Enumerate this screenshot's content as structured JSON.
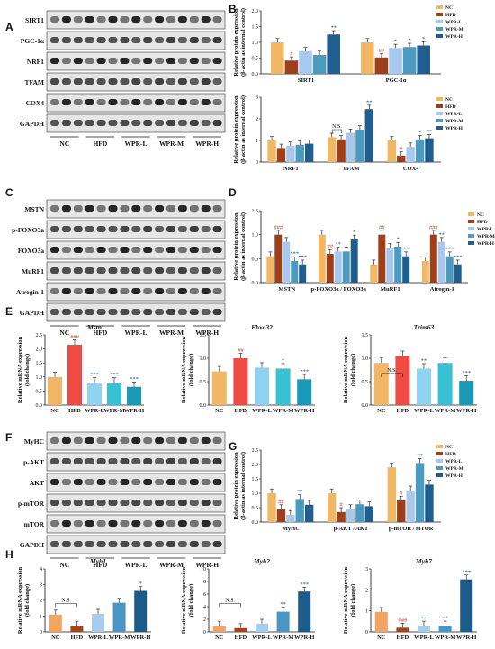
{
  "colors": {
    "NC": "#f2b765",
    "HFD": "#9e3f1a",
    "WPR-L": "#a9c8ee",
    "WPR-M": "#4b9bc0",
    "WPR-H": "#1f5e8e",
    "HFD_E": "#ef4b44",
    "WPR-L_E": "#8fd3f1",
    "WPR-M_E": "#38c1d3",
    "WPR-H_E": "#1b99b8",
    "H_NC": "#f3a463",
    "H_HFD": "#a8441c",
    "H_WPR-L": "#a7ccec",
    "H_WPR-M": "#4896c3",
    "H_WPR-H": "#1c5b8a"
  },
  "panels": {
    "A": "A",
    "B": "B",
    "C": "C",
    "D": "D",
    "E": "E",
    "F": "F",
    "G": "G",
    "H": "H"
  },
  "blot_group_labels": [
    "NC",
    "HFD",
    "WPR-L",
    "WPR-M",
    "WPR-H"
  ],
  "blots": {
    "A": [
      "SIRT1",
      "PGC-1α",
      "NRF1",
      "TFAM",
      "COX4",
      "GAPDH"
    ],
    "C": [
      "MSTN",
      "p-FOXO3a",
      "FOXO3a",
      "MuRF1",
      "Atrogin-1",
      "GAPDH"
    ],
    "F": [
      "MyHC",
      "p-AKT",
      "AKT",
      "p-mTOR",
      "mTOR",
      "GAPDH"
    ]
  },
  "legend": [
    "NC",
    "HFD",
    "WPR-L",
    "WPR-M",
    "WPR-H"
  ],
  "protein_ylabel": [
    "Relative protein expression",
    "(β-actin as internal control)"
  ],
  "mrna_ylabel": [
    "Relative mRNA expression",
    "(fold change)"
  ],
  "chart_data": [
    {
      "id": "B1",
      "type": "bar",
      "categories": [
        "SIRT1",
        "PGC-1α"
      ],
      "ylim": [
        0,
        2.0
      ],
      "yticks": [
        "0.0",
        "0.5",
        "1.0",
        "1.5",
        "2.0"
      ],
      "series": [
        {
          "name": "NC",
          "values": [
            1.0,
            1.0
          ]
        },
        {
          "name": "HFD",
          "values": [
            0.42,
            0.52
          ]
        },
        {
          "name": "WPR-L",
          "values": [
            0.72,
            0.82
          ]
        },
        {
          "name": "WPR-M",
          "values": [
            0.6,
            0.85
          ]
        },
        {
          "name": "WPR-H",
          "values": [
            1.25,
            0.9
          ]
        }
      ],
      "sig": [
        [
          "",
          "#",
          "",
          "",
          "**"
        ],
        [
          "",
          "##",
          "*",
          "*",
          "*"
        ]
      ]
    },
    {
      "id": "B2",
      "type": "bar",
      "categories": [
        "NRF1",
        "TFAM",
        "COX4"
      ],
      "ylim": [
        0,
        3
      ],
      "yticks": [
        "0",
        "1",
        "2",
        "3"
      ],
      "series": [
        {
          "name": "NC",
          "values": [
            1.0,
            1.15,
            1.0
          ]
        },
        {
          "name": "HFD",
          "values": [
            0.65,
            1.05,
            0.3
          ]
        },
        {
          "name": "WPR-L",
          "values": [
            0.75,
            1.35,
            0.7
          ]
        },
        {
          "name": "WPR-M",
          "values": [
            0.8,
            1.5,
            1.05
          ]
        },
        {
          "name": "WPR-H",
          "values": [
            0.85,
            2.45,
            1.1
          ]
        }
      ],
      "sig": [
        [
          "",
          "",
          "",
          "",
          ""
        ],
        [
          "",
          "",
          "",
          "",
          "**"
        ],
        [
          "",
          "#",
          "",
          "*",
          "**"
        ]
      ],
      "annotation": "N.S."
    },
    {
      "id": "D",
      "type": "bar",
      "categories": [
        "MSTN",
        "p-FOXO3a / FOXO3a",
        "MuRF1",
        "Atrogin-1"
      ],
      "ylim": [
        0,
        1.5
      ],
      "yticks": [
        "0.0",
        "0.5",
        "1.0",
        "1.5"
      ],
      "series": [
        {
          "name": "NC",
          "values": [
            0.55,
            1.0,
            0.38,
            0.45
          ]
        },
        {
          "name": "HFD",
          "values": [
            1.0,
            0.6,
            1.0,
            1.0
          ]
        },
        {
          "name": "WPR-L",
          "values": [
            0.85,
            0.65,
            0.72,
            0.85
          ]
        },
        {
          "name": "WPR-M",
          "values": [
            0.45,
            0.65,
            0.75,
            0.55
          ]
        },
        {
          "name": "WPR-H",
          "values": [
            0.38,
            0.9,
            0.55,
            0.38
          ]
        }
      ],
      "sig": [
        [
          "",
          "###",
          "",
          "***",
          "***"
        ],
        [
          "",
          "##",
          "**",
          "",
          "*"
        ],
        [
          "",
          "##",
          "",
          "*",
          "**"
        ],
        [
          "",
          "###",
          "**",
          "***",
          "***"
        ]
      ]
    },
    {
      "id": "E1",
      "type": "bar",
      "title": "Mstn",
      "categories": [
        "NC",
        "HFD",
        "WPR-L",
        "WPR-M",
        "WPR-H"
      ],
      "ylim": [
        0,
        2.5
      ],
      "yticks": [
        "0.0",
        "0.5",
        "1.0",
        "1.5",
        "2.0",
        "2.5"
      ],
      "values": [
        1.0,
        2.15,
        0.8,
        0.8,
        0.65
      ],
      "sig": [
        "",
        "###",
        "***",
        "***",
        "***"
      ]
    },
    {
      "id": "E2",
      "type": "bar",
      "title": "Fbxo32",
      "categories": [
        "NC",
        "HFD",
        "WPR-L",
        "WPR-M",
        "WPR-H"
      ],
      "ylim": [
        0,
        1.5
      ],
      "yticks": [
        "0.0",
        "0.5",
        "1.0",
        "1.5"
      ],
      "values": [
        0.72,
        1.0,
        0.8,
        0.78,
        0.55
      ],
      "sig": [
        "",
        "##",
        "",
        "*",
        "***"
      ]
    },
    {
      "id": "E3",
      "type": "bar",
      "title": "Trim63",
      "categories": [
        "NC",
        "HFD",
        "WPR-L",
        "WPR-M",
        "WPR-H"
      ],
      "ylim": [
        0,
        1.5
      ],
      "yticks": [
        "0.0",
        "0.5",
        "1.0",
        "1.5"
      ],
      "values": [
        0.9,
        1.05,
        0.78,
        0.9,
        0.52
      ],
      "sig": [
        "",
        "",
        "**",
        "",
        "***"
      ],
      "annotation": "N.S."
    },
    {
      "id": "G",
      "type": "bar",
      "categories": [
        "MyHC",
        "p-AKT / AKT",
        "p-mTOR / mTOR"
      ],
      "ylim": [
        0,
        2.5
      ],
      "yticks": [
        "0.0",
        "0.5",
        "1.0",
        "1.5",
        "2.0",
        "2.5"
      ],
      "series": [
        {
          "name": "NC",
          "values": [
            1.0,
            1.0,
            1.9
          ]
        },
        {
          "name": "HFD",
          "values": [
            0.45,
            0.35,
            0.75
          ]
        },
        {
          "name": "WPR-L",
          "values": [
            0.25,
            0.45,
            1.1
          ]
        },
        {
          "name": "WPR-M",
          "values": [
            0.8,
            0.62,
            2.05
          ]
        },
        {
          "name": "WPR-H",
          "values": [
            0.6,
            0.55,
            1.3
          ]
        }
      ],
      "sig": [
        [
          "",
          "##",
          "",
          "**",
          ""
        ],
        [
          "",
          "#",
          "",
          "",
          ""
        ],
        [
          "",
          "#",
          "",
          "**",
          ""
        ]
      ]
    },
    {
      "id": "H1",
      "type": "bar",
      "title": "Myh1",
      "categories": [
        "NC",
        "HFD",
        "WPR-L",
        "WPR-M",
        "WPR-H"
      ],
      "ylim": [
        0,
        4
      ],
      "yticks": [
        "0",
        "1",
        "2",
        "3",
        "4"
      ],
      "values": [
        1.1,
        0.4,
        1.15,
        1.85,
        2.6
      ],
      "sig": [
        "",
        "",
        "",
        "",
        "*"
      ],
      "annotation": "N.S."
    },
    {
      "id": "H2",
      "type": "bar",
      "title": "Myh2",
      "categories": [
        "NC",
        "HFD",
        "WPR-L",
        "WPR-M",
        "WPR-H"
      ],
      "ylim": [
        0,
        10
      ],
      "yticks": [
        "0",
        "2",
        "4",
        "6",
        "8",
        "10"
      ],
      "values": [
        1.0,
        0.6,
        1.3,
        3.2,
        6.4
      ],
      "sig": [
        "",
        "",
        "",
        "**",
        "***"
      ],
      "annotation": "N.S."
    },
    {
      "id": "H3",
      "type": "bar",
      "title": "Myh7",
      "categories": [
        "NC",
        "HFD",
        "WPR-L",
        "WPR-M",
        "WPR-H"
      ],
      "ylim": [
        0,
        3
      ],
      "yticks": [
        "0",
        "1",
        "2",
        "3"
      ],
      "values": [
        0.95,
        0.2,
        0.3,
        0.3,
        2.5
      ],
      "sig": [
        "",
        "###",
        "**",
        "**",
        "***"
      ]
    }
  ]
}
